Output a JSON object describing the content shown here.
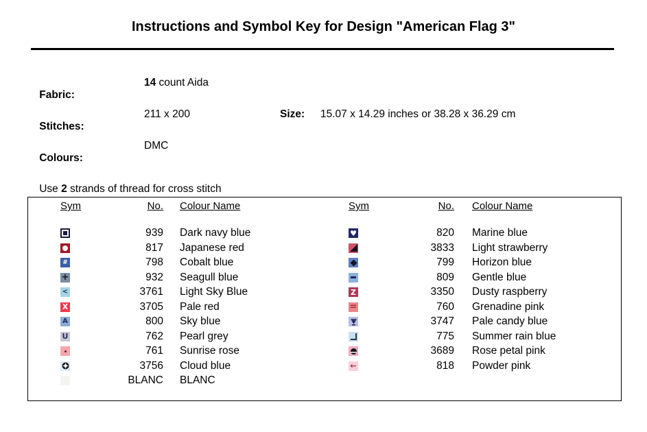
{
  "title": "Instructions and Symbol Key for Design \"American Flag 3\"",
  "info": {
    "fabric_label": "Fabric:",
    "fabric_value_bold": "14",
    "fabric_value_rest": " count Aida",
    "stitches_label": "Stitches:",
    "stitches_value": "211 x 200",
    "size_label": "Size:",
    "size_value": "15.07 x 14.29 inches or 38.28 x 36.29 cm",
    "colours_label": "Colours:",
    "colours_value": "DMC",
    "strands_prefix": "Use ",
    "strands_bold": "2",
    "strands_suffix": " strands of thread for cross stitch"
  },
  "key": {
    "headers": {
      "sym": "Sym",
      "no": "No.",
      "name": "Colour Name"
    },
    "left_rows": [
      {
        "no": "939",
        "name": "Dark navy blue",
        "sym": {
          "icon": "white-square-outline-icon",
          "shape": "square-outline",
          "bg": "#1b1b40",
          "fg": "#ffffff"
        }
      },
      {
        "no": "817",
        "name": "Japanese red",
        "sym": {
          "icon": "white-circle-icon",
          "shape": "circle",
          "bg": "#9e1b26",
          "fg": "#ffffff"
        }
      },
      {
        "no": "798",
        "name": "Cobalt blue",
        "sym": {
          "icon": "hash-icon",
          "shape": "text",
          "glyph": "#",
          "bg": "#3a5fa8",
          "fg": "#ffffff",
          "size": 9
        }
      },
      {
        "no": "932",
        "name": "Seagull blue",
        "sym": {
          "icon": "plus-icon",
          "shape": "text",
          "glyph": "+",
          "bg": "#7b8fa0",
          "fg": "#14141e",
          "size": 13
        }
      },
      {
        "no": "3761",
        "name": "Light Sky Blue",
        "sym": {
          "icon": "less-than-icon",
          "shape": "text",
          "glyph": "<",
          "bg": "#a8d4e4",
          "fg": "#1c3a5e",
          "size": 10
        }
      },
      {
        "no": "3705",
        "name": "Pale red",
        "sym": {
          "icon": "x-icon",
          "shape": "text",
          "glyph": "X",
          "bg": "#ee3a4e",
          "fg": "#ffffff",
          "size": 11
        }
      },
      {
        "no": "800",
        "name": "Sky blue",
        "sym": {
          "icon": "letter-a-icon",
          "shape": "text",
          "glyph": "A",
          "bg": "#8cabd6",
          "fg": "#1c2a60",
          "size": 10
        }
      },
      {
        "no": "762",
        "name": "Pearl grey",
        "sym": {
          "icon": "letter-u-icon",
          "shape": "text",
          "glyph": "U",
          "bg": "#c8c8d2",
          "fg": "#2a2a6a",
          "size": 11
        }
      },
      {
        "no": "761",
        "name": "Sunrise rose",
        "sym": {
          "icon": "small-dot-icon",
          "shape": "dot",
          "bg": "#f4a8ac",
          "fg": "#5e2430"
        }
      },
      {
        "no": "3756",
        "name": "Cloud blue",
        "sym": {
          "icon": "star-in-circle-icon",
          "shape": "star-circle",
          "bg": "#dcebf4",
          "fg": "#14141e"
        }
      },
      {
        "no": "BLANC",
        "name": "BLANC",
        "sym": {
          "icon": "blank-square-icon",
          "shape": "blank",
          "bg": "#f4f4f0"
        }
      }
    ],
    "right_rows": [
      {
        "no": "820",
        "name": "Marine blue",
        "sym": {
          "icon": "heart-icon",
          "shape": "text",
          "glyph": "♥",
          "bg": "#222866",
          "fg": "#ffffff",
          "size": 11
        }
      },
      {
        "no": "3833",
        "name": "Light strawberry",
        "sym": {
          "icon": "lower-right-triangle-icon",
          "shape": "triangle",
          "bg": "#d25068",
          "fg": "#14141e"
        }
      },
      {
        "no": "799",
        "name": "Horizon blue",
        "sym": {
          "icon": "diamond-icon",
          "shape": "diamond",
          "bg": "#5e80c2",
          "fg": "#14141e"
        }
      },
      {
        "no": "809",
        "name": "Gentle blue",
        "sym": {
          "icon": "dash-icon",
          "shape": "dash",
          "bg": "#8cb0e0",
          "fg": "#1c2a60"
        }
      },
      {
        "no": "3350",
        "name": "Dusty raspberry",
        "sym": {
          "icon": "letter-z-icon",
          "shape": "text",
          "glyph": "Z",
          "bg": "#a93a58",
          "fg": "#ffffff",
          "size": 11
        }
      },
      {
        "no": "760",
        "name": "Grenadine pink",
        "sym": {
          "icon": "equals-icon",
          "shape": "text",
          "glyph": "=",
          "bg": "#ea868c",
          "fg": "#a03040",
          "size": 13
        }
      },
      {
        "no": "3747",
        "name": "Pale candy blue",
        "sym": {
          "icon": "hourglass-icon",
          "shape": "hourglass",
          "bg": "#b6c1e6",
          "fg": "#1c2050"
        }
      },
      {
        "no": "775",
        "name": "Summer rain blue",
        "sym": {
          "icon": "corner-icon",
          "shape": "corner",
          "bg": "#c8e0f0",
          "fg": "#28344e"
        }
      },
      {
        "no": "3689",
        "name": "Rose petal pink",
        "sym": {
          "icon": "banded-circle-icon",
          "shape": "circle-band",
          "bg": "#f2abbd",
          "fg": "#14141e"
        }
      },
      {
        "no": "818",
        "name": "Powder pink",
        "sym": {
          "icon": "left-arrow-icon",
          "shape": "text",
          "glyph": "←",
          "bg": "#f8d0d6",
          "fg": "#a03444",
          "size": 11
        }
      }
    ]
  }
}
